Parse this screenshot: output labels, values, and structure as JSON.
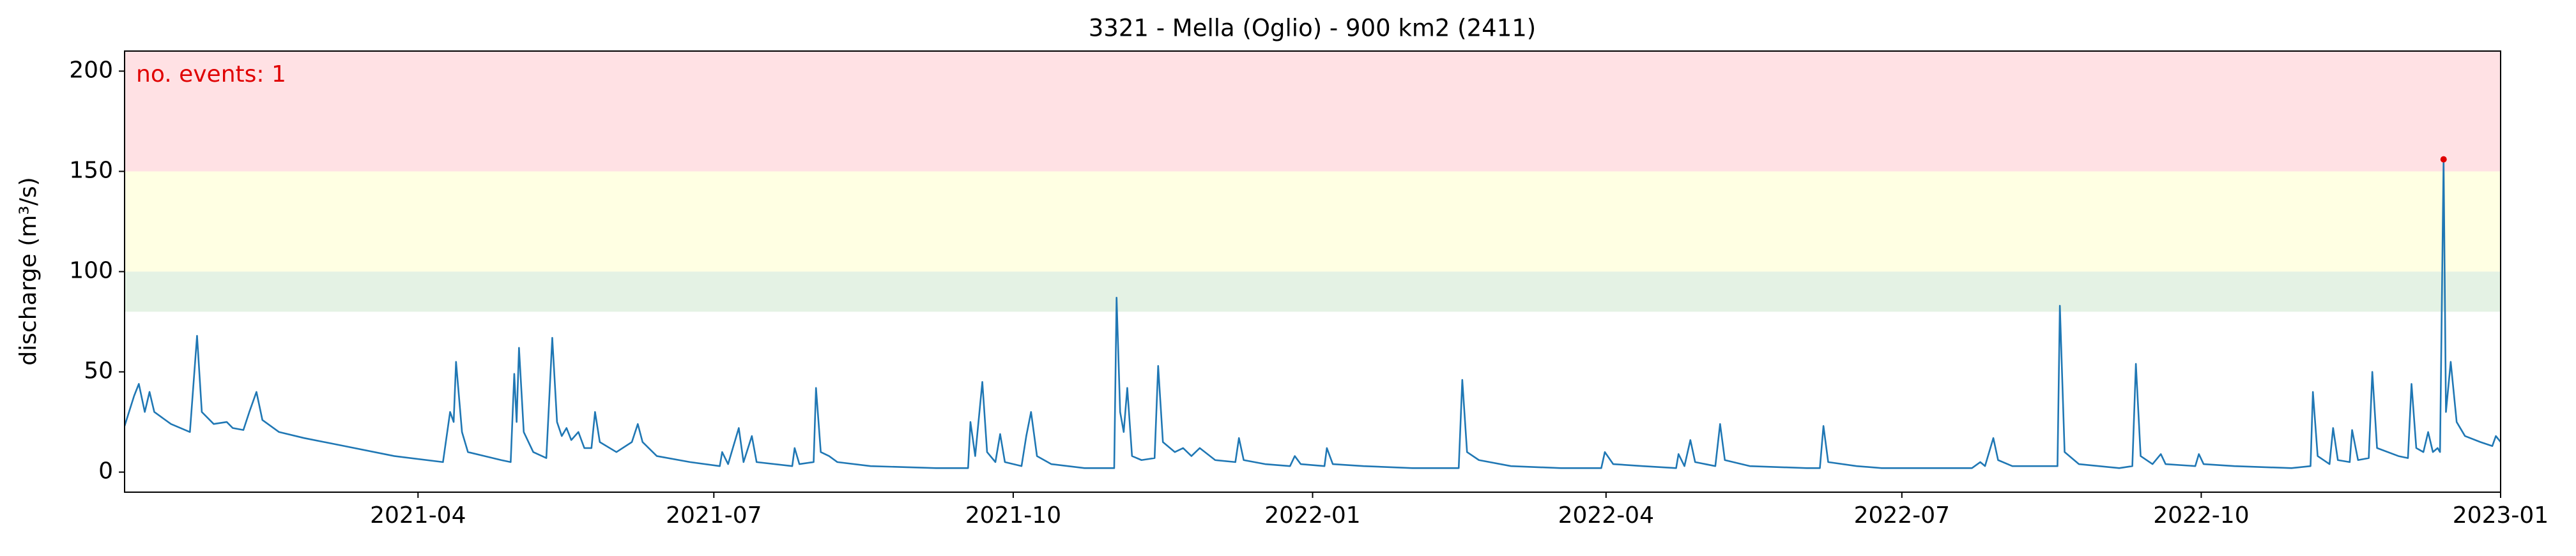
{
  "chart_data": {
    "type": "line",
    "title": "3321 - Mella (Oglio) - 900 km2 (2411)",
    "ylabel": "discharge (m³/s)",
    "annotation": "no. events: 1",
    "annotation_color": "#e00000",
    "xlim": [
      2021.0,
      2023.0
    ],
    "ylim": [
      -10,
      210
    ],
    "xticks": [
      {
        "value": 2021.247,
        "label": "2021-04"
      },
      {
        "value": 2021.496,
        "label": "2021-07"
      },
      {
        "value": 2021.748,
        "label": "2021-10"
      },
      {
        "value": 2022.0,
        "label": "2022-01"
      },
      {
        "value": 2022.247,
        "label": "2022-04"
      },
      {
        "value": 2022.496,
        "label": "2022-07"
      },
      {
        "value": 2022.748,
        "label": "2022-10"
      },
      {
        "value": 2023.0,
        "label": "2023-01"
      }
    ],
    "yticks": [
      0,
      50,
      100,
      150,
      200
    ],
    "bands": [
      {
        "from": 80,
        "to": 100,
        "color": "#e4f2e4"
      },
      {
        "from": 100,
        "to": 150,
        "color": "#ffffe3"
      },
      {
        "from": 150,
        "to": 210,
        "color": "#ffe1e4"
      }
    ],
    "x": [
      2021.0,
      2021.008,
      2021.012,
      2021.017,
      2021.021,
      2021.025,
      2021.039,
      2021.055,
      2021.061,
      2021.065,
      2021.075,
      2021.086,
      2021.091,
      2021.1,
      2021.105,
      2021.111,
      2021.116,
      2021.13,
      2021.151,
      2021.185,
      2021.227,
      2021.268,
      2021.274,
      2021.277,
      2021.279,
      2021.284,
      2021.289,
      2021.317,
      2021.325,
      2021.328,
      2021.33,
      2021.332,
      2021.336,
      2021.344,
      2021.355,
      2021.36,
      2021.364,
      2021.368,
      2021.372,
      2021.376,
      2021.382,
      2021.387,
      2021.393,
      2021.396,
      2021.4,
      2021.414,
      2021.427,
      2021.432,
      2021.436,
      2021.448,
      2021.476,
      2021.501,
      2021.503,
      2021.508,
      2021.517,
      2021.521,
      2021.528,
      2021.532,
      2021.562,
      2021.564,
      2021.568,
      2021.58,
      2021.582,
      2021.586,
      2021.593,
      2021.6,
      2021.628,
      2021.683,
      2021.71,
      2021.712,
      2021.716,
      2021.722,
      2021.726,
      2021.733,
      2021.737,
      2021.741,
      2021.755,
      2021.759,
      2021.763,
      2021.768,
      2021.78,
      2021.808,
      2021.833,
      2021.835,
      2021.838,
      2021.841,
      2021.844,
      2021.848,
      2021.856,
      2021.867,
      2021.87,
      2021.874,
      2021.884,
      2021.891,
      2021.898,
      2021.905,
      2021.918,
      2021.935,
      2021.938,
      2021.942,
      2021.96,
      2021.981,
      2021.985,
      2021.99,
      2022.01,
      2022.012,
      2022.017,
      2022.043,
      2022.084,
      2022.123,
      2022.126,
      2022.13,
      2022.14,
      2022.167,
      2022.209,
      2022.243,
      2022.246,
      2022.253,
      2022.278,
      2022.306,
      2022.308,
      2022.313,
      2022.318,
      2022.322,
      2022.339,
      2022.343,
      2022.347,
      2022.368,
      2022.416,
      2022.427,
      2022.43,
      2022.434,
      2022.458,
      2022.479,
      2022.555,
      2022.562,
      2022.566,
      2022.573,
      2022.577,
      2022.589,
      2022.627,
      2022.629,
      2022.633,
      2022.645,
      2022.679,
      2022.69,
      2022.693,
      2022.697,
      2022.707,
      2022.714,
      2022.718,
      2022.743,
      2022.746,
      2022.75,
      2022.776,
      2022.824,
      2022.84,
      2022.842,
      2022.846,
      2022.856,
      2022.859,
      2022.863,
      2022.873,
      2022.875,
      2022.88,
      2022.889,
      2022.892,
      2022.896,
      2022.914,
      2022.922,
      2022.925,
      2022.929,
      2022.935,
      2022.939,
      2022.943,
      2022.947,
      2022.949,
      2022.952,
      2022.954,
      2022.958,
      2022.963,
      2022.97,
      2022.983,
      2022.993,
      2022.996,
      2023.0
    ],
    "series": [
      {
        "color": "#1f77b4",
        "values": [
          23,
          38,
          44,
          30,
          40,
          30,
          24,
          20,
          68,
          30,
          24,
          25,
          22,
          21,
          30,
          40,
          26,
          20,
          17,
          13,
          8,
          5,
          30,
          25,
          55,
          20,
          10,
          6,
          5,
          49,
          25,
          62,
          20,
          10,
          7,
          67,
          25,
          18,
          22,
          16,
          20,
          12,
          12,
          30,
          15,
          10,
          15,
          24,
          15,
          8,
          5,
          3,
          10,
          4,
          22,
          5,
          18,
          5,
          3,
          12,
          4,
          5,
          42,
          10,
          8,
          5,
          3,
          2,
          2,
          25,
          8,
          45,
          10,
          5,
          19,
          5,
          3,
          18,
          30,
          8,
          4,
          2,
          2,
          87,
          30,
          20,
          42,
          8,
          6,
          7,
          53,
          15,
          10,
          12,
          8,
          12,
          6,
          5,
          17,
          6,
          4,
          3,
          8,
          4,
          3,
          12,
          4,
          3,
          2,
          2,
          46,
          10,
          6,
          3,
          2,
          2,
          10,
          4,
          3,
          2,
          9,
          3,
          16,
          5,
          3,
          24,
          6,
          3,
          2,
          2,
          23,
          5,
          3,
          2,
          2,
          5,
          3,
          17,
          6,
          3,
          3,
          83,
          10,
          4,
          2,
          3,
          54,
          8,
          4,
          9,
          4,
          3,
          9,
          4,
          3,
          2,
          3,
          40,
          8,
          4,
          22,
          6,
          5,
          21,
          6,
          7,
          50,
          12,
          8,
          7,
          44,
          12,
          10,
          20,
          10,
          12,
          10,
          156,
          30,
          55,
          25,
          18,
          15,
          13,
          18,
          15
        ]
      }
    ],
    "events": [
      {
        "x": 2022.952,
        "y": 156,
        "color": "#e00000"
      }
    ]
  }
}
